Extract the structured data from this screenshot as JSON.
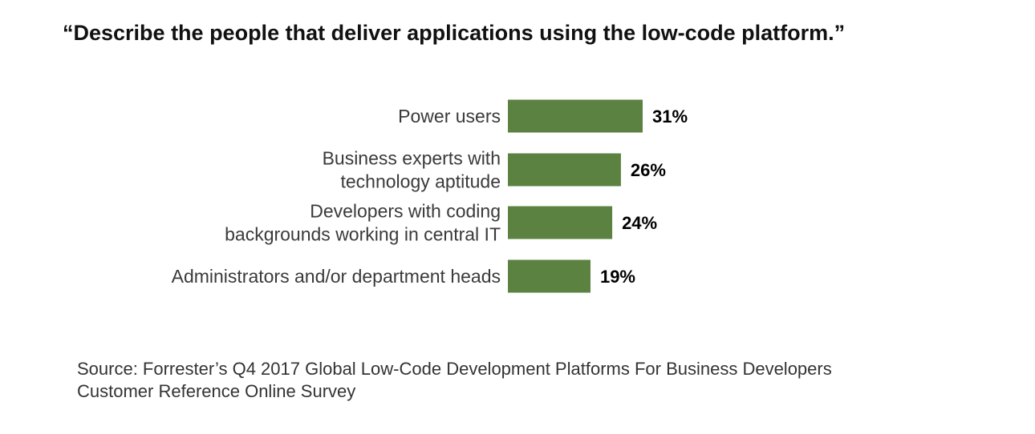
{
  "title": "“Describe the people that deliver applications using the low-code platform.”",
  "source": {
    "line1": "Source: Forrester’s Q4 2017 Global Low-Code Development Platforms For Business Developers",
    "line2": "Customer Reference Online Survey"
  },
  "colors": {
    "bar": "#5b8240",
    "label_text": "#3a3a3a",
    "value_text": "#000000"
  },
  "chart_data": {
    "type": "bar",
    "orientation": "horizontal",
    "title": "“Describe the people that deliver applications using the low-code platform.”",
    "categories": [
      [
        "Power users"
      ],
      [
        "Business experts with",
        "technology aptitude"
      ],
      [
        "Developers with coding",
        "backgrounds working in central IT"
      ],
      [
        "Administrators and/or department heads"
      ]
    ],
    "values": [
      31,
      26,
      24,
      19
    ],
    "value_labels": [
      "31%",
      "26%",
      "24%",
      "19%"
    ],
    "unit": "%",
    "xlim": [
      0,
      100
    ],
    "grid": false,
    "legend": "none"
  }
}
